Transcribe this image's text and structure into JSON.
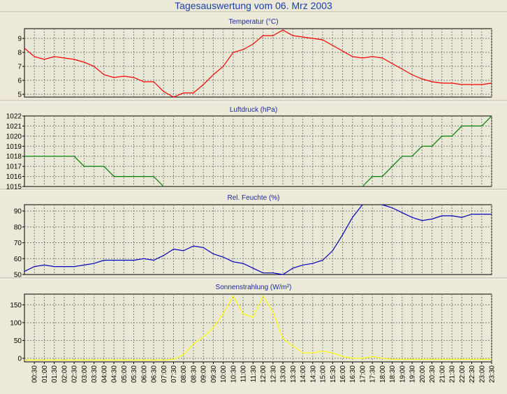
{
  "title": "Tagesauswertung vom 06. Mrz 2003",
  "x_labels": [
    "00:30",
    "01:00",
    "01:30",
    "02:00",
    "02:30",
    "03:00",
    "03:30",
    "04:00",
    "04:30",
    "05:00",
    "05:30",
    "06:00",
    "06:30",
    "07:00",
    "07:30",
    "08:00",
    "08:30",
    "09:00",
    "09:30",
    "10:00",
    "10:30",
    "11:00",
    "11:30",
    "12:00",
    "12:30",
    "13:00",
    "13:30",
    "14:00",
    "14:30",
    "15:00",
    "15:30",
    "16:00",
    "16:30",
    "17:00",
    "17:30",
    "18:00",
    "18:30",
    "19:00",
    "19:30",
    "20:00",
    "20:30",
    "21:00",
    "21:30",
    "22:00",
    "22:30",
    "23:00",
    "23:30"
  ],
  "colors": {
    "background": "#ece9d8",
    "plot_background": "#eae8d6",
    "grid": "#808080",
    "title": "#1a3fb0",
    "temperature": "#ff0000",
    "pressure": "#008000",
    "humidity": "#0000c0",
    "radiation": "#ffff00"
  },
  "chart_data": [
    {
      "type": "line",
      "title": "Temperatur (°C)",
      "xlabel": "",
      "ylabel": "",
      "ylim": [
        4.8,
        9.7
      ],
      "yticks": [
        5,
        6,
        7,
        8,
        9
      ],
      "grid": true,
      "x": [
        0,
        0.5,
        1,
        1.5,
        2,
        2.5,
        3,
        3.5,
        4,
        4.5,
        5,
        5.5,
        6,
        6.5,
        7,
        7.5,
        8,
        8.5,
        9,
        9.5,
        10,
        10.5,
        11,
        11.5,
        12,
        12.5,
        13,
        13.5,
        14,
        14.5,
        15,
        15.5,
        16,
        16.5,
        17,
        17.5,
        18,
        18.5,
        19,
        19.5,
        20,
        20.5,
        21,
        21.5,
        22,
        22.5,
        23,
        23.5
      ],
      "series": [
        {
          "color": "#ff0000",
          "values": [
            8.3,
            7.7,
            7.5,
            7.7,
            7.6,
            7.5,
            7.3,
            7.0,
            6.4,
            6.2,
            6.3,
            6.2,
            5.9,
            5.9,
            5.2,
            4.8,
            5.1,
            5.1,
            5.7,
            6.4,
            7.0,
            8.0,
            8.2,
            8.6,
            9.2,
            9.2,
            9.6,
            9.2,
            9.1,
            9.0,
            8.9,
            8.5,
            8.1,
            7.7,
            7.6,
            7.7,
            7.6,
            7.2,
            6.8,
            6.4,
            6.1,
            5.9,
            5.8,
            5.8,
            5.7,
            5.7,
            5.7,
            5.8
          ]
        }
      ]
    },
    {
      "type": "line",
      "title": "Luftdruck (hPa)",
      "xlabel": "",
      "ylabel": "",
      "ylim": [
        1015,
        1022
      ],
      "yticks": [
        1015,
        1016,
        1017,
        1018,
        1019,
        1020,
        1021,
        1022
      ],
      "grid": true,
      "x": [
        0,
        0.5,
        1,
        1.5,
        2,
        2.5,
        3,
        3.5,
        4,
        4.5,
        5,
        5.5,
        6,
        6.5,
        7,
        7.5,
        8,
        8.5,
        9,
        9.5,
        10,
        10.5,
        11,
        11.5,
        12,
        12.5,
        13,
        13.5,
        14,
        14.5,
        15,
        15.5,
        16,
        16.5,
        17,
        17.5,
        18,
        18.5,
        19,
        19.5,
        20,
        20.5,
        21,
        21.5,
        22,
        22.5,
        23,
        23.5
      ],
      "series": [
        {
          "color": "#008000",
          "values": [
            1018,
            1018,
            1018,
            1018,
            1018,
            1018,
            1017,
            1017,
            1017,
            1016,
            1016,
            1016,
            1016,
            1016,
            1015,
            null,
            null,
            null,
            null,
            null,
            null,
            null,
            null,
            null,
            null,
            null,
            null,
            null,
            null,
            null,
            null,
            null,
            null,
            null,
            1015,
            1016,
            1016,
            1017,
            1018,
            1018,
            1019,
            1019,
            1020,
            1020,
            1021,
            1021,
            1021,
            1022
          ]
        }
      ]
    },
    {
      "type": "line",
      "title": "Rel. Feuchte (%)",
      "xlabel": "",
      "ylabel": "",
      "ylim": [
        50,
        94
      ],
      "yticks": [
        50,
        60,
        70,
        80,
        90
      ],
      "grid": true,
      "x": [
        0,
        0.5,
        1,
        1.5,
        2,
        2.5,
        3,
        3.5,
        4,
        4.5,
        5,
        5.5,
        6,
        6.5,
        7,
        7.5,
        8,
        8.5,
        9,
        9.5,
        10,
        10.5,
        11,
        11.5,
        12,
        12.5,
        13,
        13.5,
        14,
        14.5,
        15,
        15.5,
        16,
        16.5,
        17,
        17.5,
        18,
        18.5,
        19,
        19.5,
        20,
        20.5,
        21,
        21.5,
        22,
        22.5,
        23,
        23.5
      ],
      "series": [
        {
          "color": "#0000c0",
          "values": [
            52,
            55,
            56,
            55,
            55,
            55,
            56,
            57,
            59,
            59,
            59,
            59,
            60,
            59,
            62,
            66,
            65,
            68,
            67,
            63,
            61,
            58,
            57,
            54,
            51,
            51,
            50,
            54,
            56,
            57,
            59,
            65,
            75,
            86,
            94,
            null,
            94,
            92,
            89,
            86,
            84,
            85,
            87,
            87,
            86,
            88,
            88,
            88
          ]
        }
      ]
    },
    {
      "type": "line",
      "title": "Sonnenstrahlung (W/m²)",
      "xlabel": "",
      "ylabel": "",
      "ylim": [
        -10,
        180
      ],
      "yticks": [
        0,
        50,
        100,
        150
      ],
      "grid": true,
      "x": [
        0,
        0.5,
        1,
        1.5,
        2,
        2.5,
        3,
        3.5,
        4,
        4.5,
        5,
        5.5,
        6,
        6.5,
        7,
        7.5,
        8,
        8.5,
        9,
        9.5,
        10,
        10.5,
        11,
        11.5,
        12,
        12.5,
        13,
        13.5,
        14,
        14.5,
        15,
        15.5,
        16,
        16.5,
        17,
        17.5,
        18,
        18.5,
        19,
        19.5,
        20,
        20.5,
        21,
        21.5,
        22,
        22.5,
        23,
        23.5
      ],
      "series": [
        {
          "color": "#ffff00",
          "values": [
            -5,
            -5,
            -5,
            -5,
            -5,
            -5,
            -5,
            -5,
            -5,
            -5,
            -5,
            -5,
            -5,
            -5,
            -5,
            -3,
            10,
            40,
            60,
            85,
            125,
            175,
            125,
            115,
            175,
            130,
            55,
            35,
            15,
            15,
            20,
            15,
            5,
            0,
            0,
            5,
            0,
            -3,
            -3,
            -3,
            -3,
            -3,
            -3,
            -3,
            -3,
            -3,
            -3,
            -3
          ]
        }
      ]
    }
  ]
}
